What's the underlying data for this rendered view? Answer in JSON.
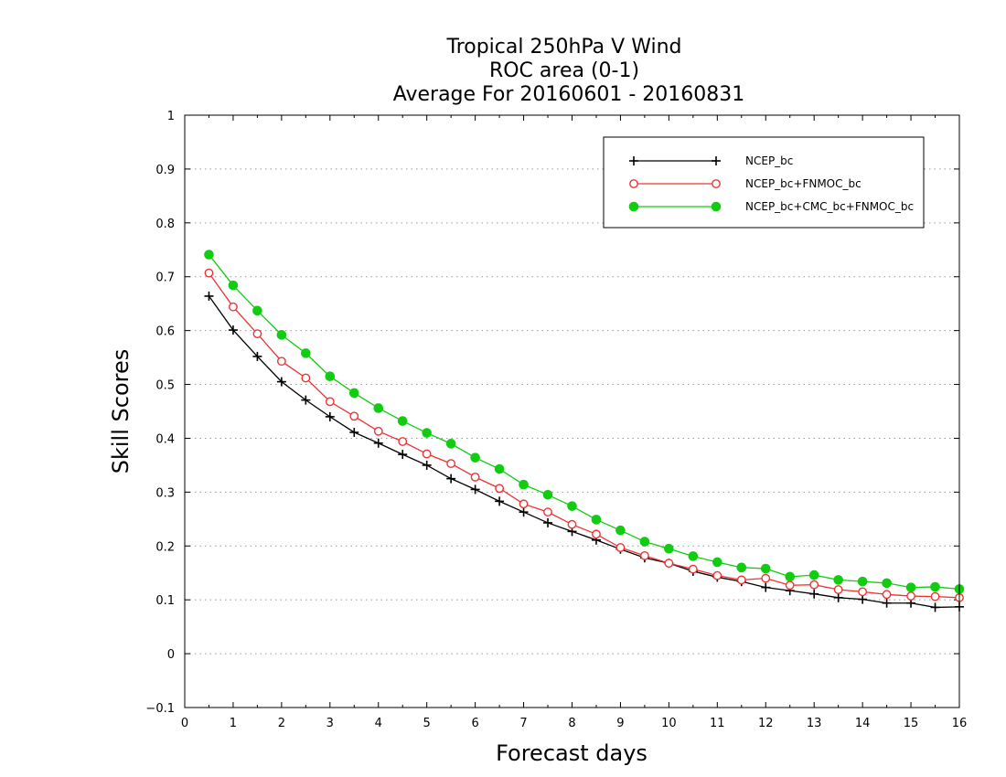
{
  "chart_data": {
    "type": "line",
    "title_lines": [
      "Tropical 250hPa V Wind",
      "ROC area (0-1)",
      "Average For 20160601 - 20160831"
    ],
    "xlabel": "Forecast days",
    "ylabel": "Skill Scores",
    "xlim": [
      0,
      16
    ],
    "ylim": [
      -0.1,
      1
    ],
    "x_ticks": [
      "0",
      "1",
      "2",
      "3",
      "4",
      "5",
      "6",
      "7",
      "8",
      "9",
      "10",
      "11",
      "12",
      "13",
      "14",
      "15",
      "16"
    ],
    "y_ticks": [
      "−0.1",
      "0",
      "0.1",
      "0.2",
      "0.3",
      "0.4",
      "0.5",
      "0.6",
      "0.7",
      "0.8",
      "0.9",
      "1"
    ],
    "y_tick_values": [
      -0.1,
      0,
      0.1,
      0.2,
      0.3,
      0.4,
      0.5,
      0.6,
      0.7,
      0.8,
      0.9,
      1.0
    ],
    "grid": "horizontal-dotted",
    "legend_position": "top-right",
    "x": [
      0.5,
      1,
      1.5,
      2,
      2.5,
      3,
      3.5,
      4,
      4.5,
      5,
      5.5,
      6,
      6.5,
      7,
      7.5,
      8,
      8.5,
      9,
      9.5,
      10,
      10.5,
      11,
      11.5,
      12,
      12.5,
      13,
      13.5,
      14,
      14.5,
      15,
      15.5,
      16
    ],
    "series": [
      {
        "name": "NCEP_bc",
        "marker": "plus",
        "color": "#000000",
        "values": [
          0.664,
          0.601,
          0.552,
          0.505,
          0.471,
          0.44,
          0.411,
          0.391,
          0.37,
          0.35,
          0.325,
          0.305,
          0.283,
          0.263,
          0.243,
          0.227,
          0.211,
          0.194,
          0.178,
          0.168,
          0.153,
          0.142,
          0.134,
          0.123,
          0.117,
          0.111,
          0.104,
          0.101,
          0.094,
          0.094,
          0.086,
          0.087
        ]
      },
      {
        "name": "NCEP_bc+FNMOC_bc",
        "marker": "open-circle",
        "color": "#ee3333",
        "values": [
          0.707,
          0.644,
          0.594,
          0.543,
          0.512,
          0.468,
          0.441,
          0.413,
          0.394,
          0.371,
          0.353,
          0.328,
          0.307,
          0.278,
          0.263,
          0.24,
          0.222,
          0.197,
          0.182,
          0.168,
          0.157,
          0.145,
          0.137,
          0.14,
          0.127,
          0.128,
          0.119,
          0.115,
          0.11,
          0.107,
          0.106,
          0.104
        ]
      },
      {
        "name": "NCEP_bc+CMC_bc+FNMOC_bc",
        "marker": "filled-circle",
        "color": "#11cc11",
        "values": [
          0.741,
          0.684,
          0.637,
          0.592,
          0.558,
          0.515,
          0.484,
          0.456,
          0.432,
          0.41,
          0.39,
          0.364,
          0.343,
          0.314,
          0.295,
          0.274,
          0.249,
          0.229,
          0.208,
          0.195,
          0.181,
          0.17,
          0.16,
          0.158,
          0.143,
          0.146,
          0.137,
          0.134,
          0.131,
          0.123,
          0.124,
          0.12
        ]
      }
    ]
  }
}
